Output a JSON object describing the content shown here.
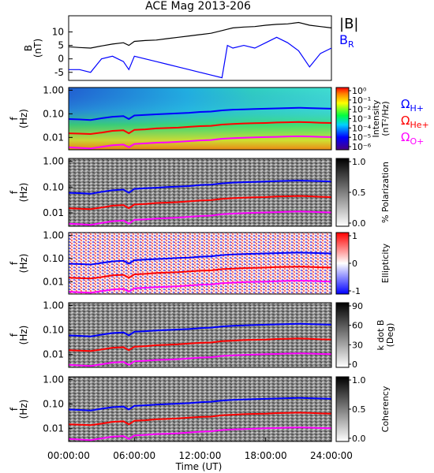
{
  "title": "ACE Mag 2013-206",
  "colors": {
    "black": "#000000",
    "blue": "#0000ff",
    "red": "#ff0000",
    "magenta": "#ff00ff"
  },
  "chart_data": [
    {
      "type": "line",
      "title": "ACE Mag 2013-206",
      "ylabel": "B\n(nT)",
      "ylim": [
        -8,
        16
      ],
      "yticks": [
        "10",
        "5",
        "0",
        "-5"
      ],
      "legend": [
        {
          "label": "|B|",
          "color": "#000000"
        },
        {
          "label": "B",
          "sub": "R",
          "color": "#0000ff"
        }
      ],
      "x": [
        0,
        1,
        2,
        3,
        4,
        5,
        5.5,
        6,
        7,
        8,
        9,
        10,
        11,
        12,
        13,
        14,
        14.5,
        15,
        16,
        17,
        18,
        19,
        20,
        21,
        22,
        23,
        24
      ],
      "series": [
        {
          "name": "|B|",
          "color": "#000000",
          "values": [
            4.5,
            4.2,
            4.0,
            4.8,
            5.5,
            6.0,
            5.0,
            6.5,
            6.8,
            7.0,
            7.5,
            8.0,
            8.5,
            9.0,
            9.5,
            10.5,
            11.0,
            11.5,
            11.8,
            12.0,
            12.5,
            12.8,
            13.0,
            13.5,
            12.5,
            12.0,
            11.5
          ]
        },
        {
          "name": "B_R",
          "color": "#0000ff",
          "values": [
            -4,
            -4,
            -5,
            0,
            1,
            -1,
            -4,
            1,
            0,
            -1,
            -2,
            -3,
            -4,
            -5,
            -6,
            -7,
            5,
            4,
            5,
            4,
            6,
            8,
            6,
            3,
            -3,
            2,
            4
          ]
        }
      ]
    },
    {
      "type": "heatmap",
      "ylabel": "f\n(Hz)",
      "yticks": [
        "1.00",
        "0.10",
        "0.01"
      ],
      "colorbar_label": "Intensity\n(nT²/Hz)",
      "colorbar_ticks": [
        "10⁰",
        "10⁻¹",
        "10⁻²",
        "10⁻³",
        "10⁻⁴",
        "10⁻⁵",
        "10⁻⁶"
      ],
      "legend": [
        {
          "label": "Ω",
          "sub": "H+",
          "color": "#0000ff"
        },
        {
          "label": "Ω",
          "sub": "He+",
          "color": "#ff0000"
        },
        {
          "label": "Ω",
          "sub": "O+",
          "color": "#ff00ff"
        }
      ]
    },
    {
      "type": "heatmap",
      "ylabel": "f\n(Hz)",
      "yticks": [
        "1.00",
        "0.10",
        "0.01"
      ],
      "colorbar_label": "% Polarization",
      "colorbar_ticks": [
        "1.0",
        "0.5",
        "0.0"
      ]
    },
    {
      "type": "heatmap",
      "ylabel": "f\n(Hz)",
      "yticks": [
        "1.00",
        "0.10",
        "0.01"
      ],
      "colorbar_label": "Ellipticity",
      "colorbar_ticks": [
        "1",
        "0",
        "-1"
      ]
    },
    {
      "type": "heatmap",
      "ylabel": "f\n(Hz)",
      "yticks": [
        "1.00",
        "0.10",
        "0.01"
      ],
      "colorbar_label": "k dot B\n(Deg)",
      "colorbar_ticks": [
        "90",
        "60",
        "30",
        "0"
      ]
    },
    {
      "type": "heatmap",
      "ylabel": "f\n(Hz)",
      "yticks": [
        "1.00",
        "0.10",
        "0.01"
      ],
      "colorbar_label": "Coherency",
      "colorbar_ticks": [
        "1.0",
        "0.5",
        "0.0"
      ]
    }
  ],
  "gyrofrequency_lines": {
    "x": [
      0,
      1,
      2,
      3,
      4,
      5,
      5.5,
      6,
      7,
      8,
      9,
      10,
      11,
      12,
      13,
      14,
      15,
      16,
      17,
      18,
      19,
      20,
      21,
      22,
      23,
      24
    ],
    "H_plus_hz": [
      0.06,
      0.058,
      0.055,
      0.065,
      0.075,
      0.08,
      0.06,
      0.085,
      0.09,
      0.095,
      0.1,
      0.105,
      0.11,
      0.12,
      0.125,
      0.14,
      0.15,
      0.155,
      0.16,
      0.165,
      0.17,
      0.175,
      0.18,
      0.175,
      0.17,
      0.165
    ],
    "He_plus_hz": [
      0.015,
      0.0145,
      0.014,
      0.016,
      0.019,
      0.02,
      0.015,
      0.021,
      0.022,
      0.024,
      0.025,
      0.026,
      0.028,
      0.03,
      0.031,
      0.035,
      0.037,
      0.039,
      0.04,
      0.041,
      0.043,
      0.044,
      0.045,
      0.044,
      0.042,
      0.041
    ],
    "O_plus_hz": [
      0.0038,
      0.0036,
      0.0034,
      0.004,
      0.0047,
      0.005,
      0.0038,
      0.0053,
      0.0056,
      0.006,
      0.0062,
      0.0065,
      0.007,
      0.0075,
      0.0078,
      0.0088,
      0.0093,
      0.0097,
      0.01,
      0.0103,
      0.0106,
      0.011,
      0.0112,
      0.011,
      0.0106,
      0.0103
    ]
  },
  "x_axis": {
    "label": "Time (UT)",
    "ticks": [
      "00:00:00",
      "06:00:00",
      "12:00:00",
      "18:00:00",
      "24:00:00"
    ],
    "range_hours": [
      0,
      24
    ]
  }
}
